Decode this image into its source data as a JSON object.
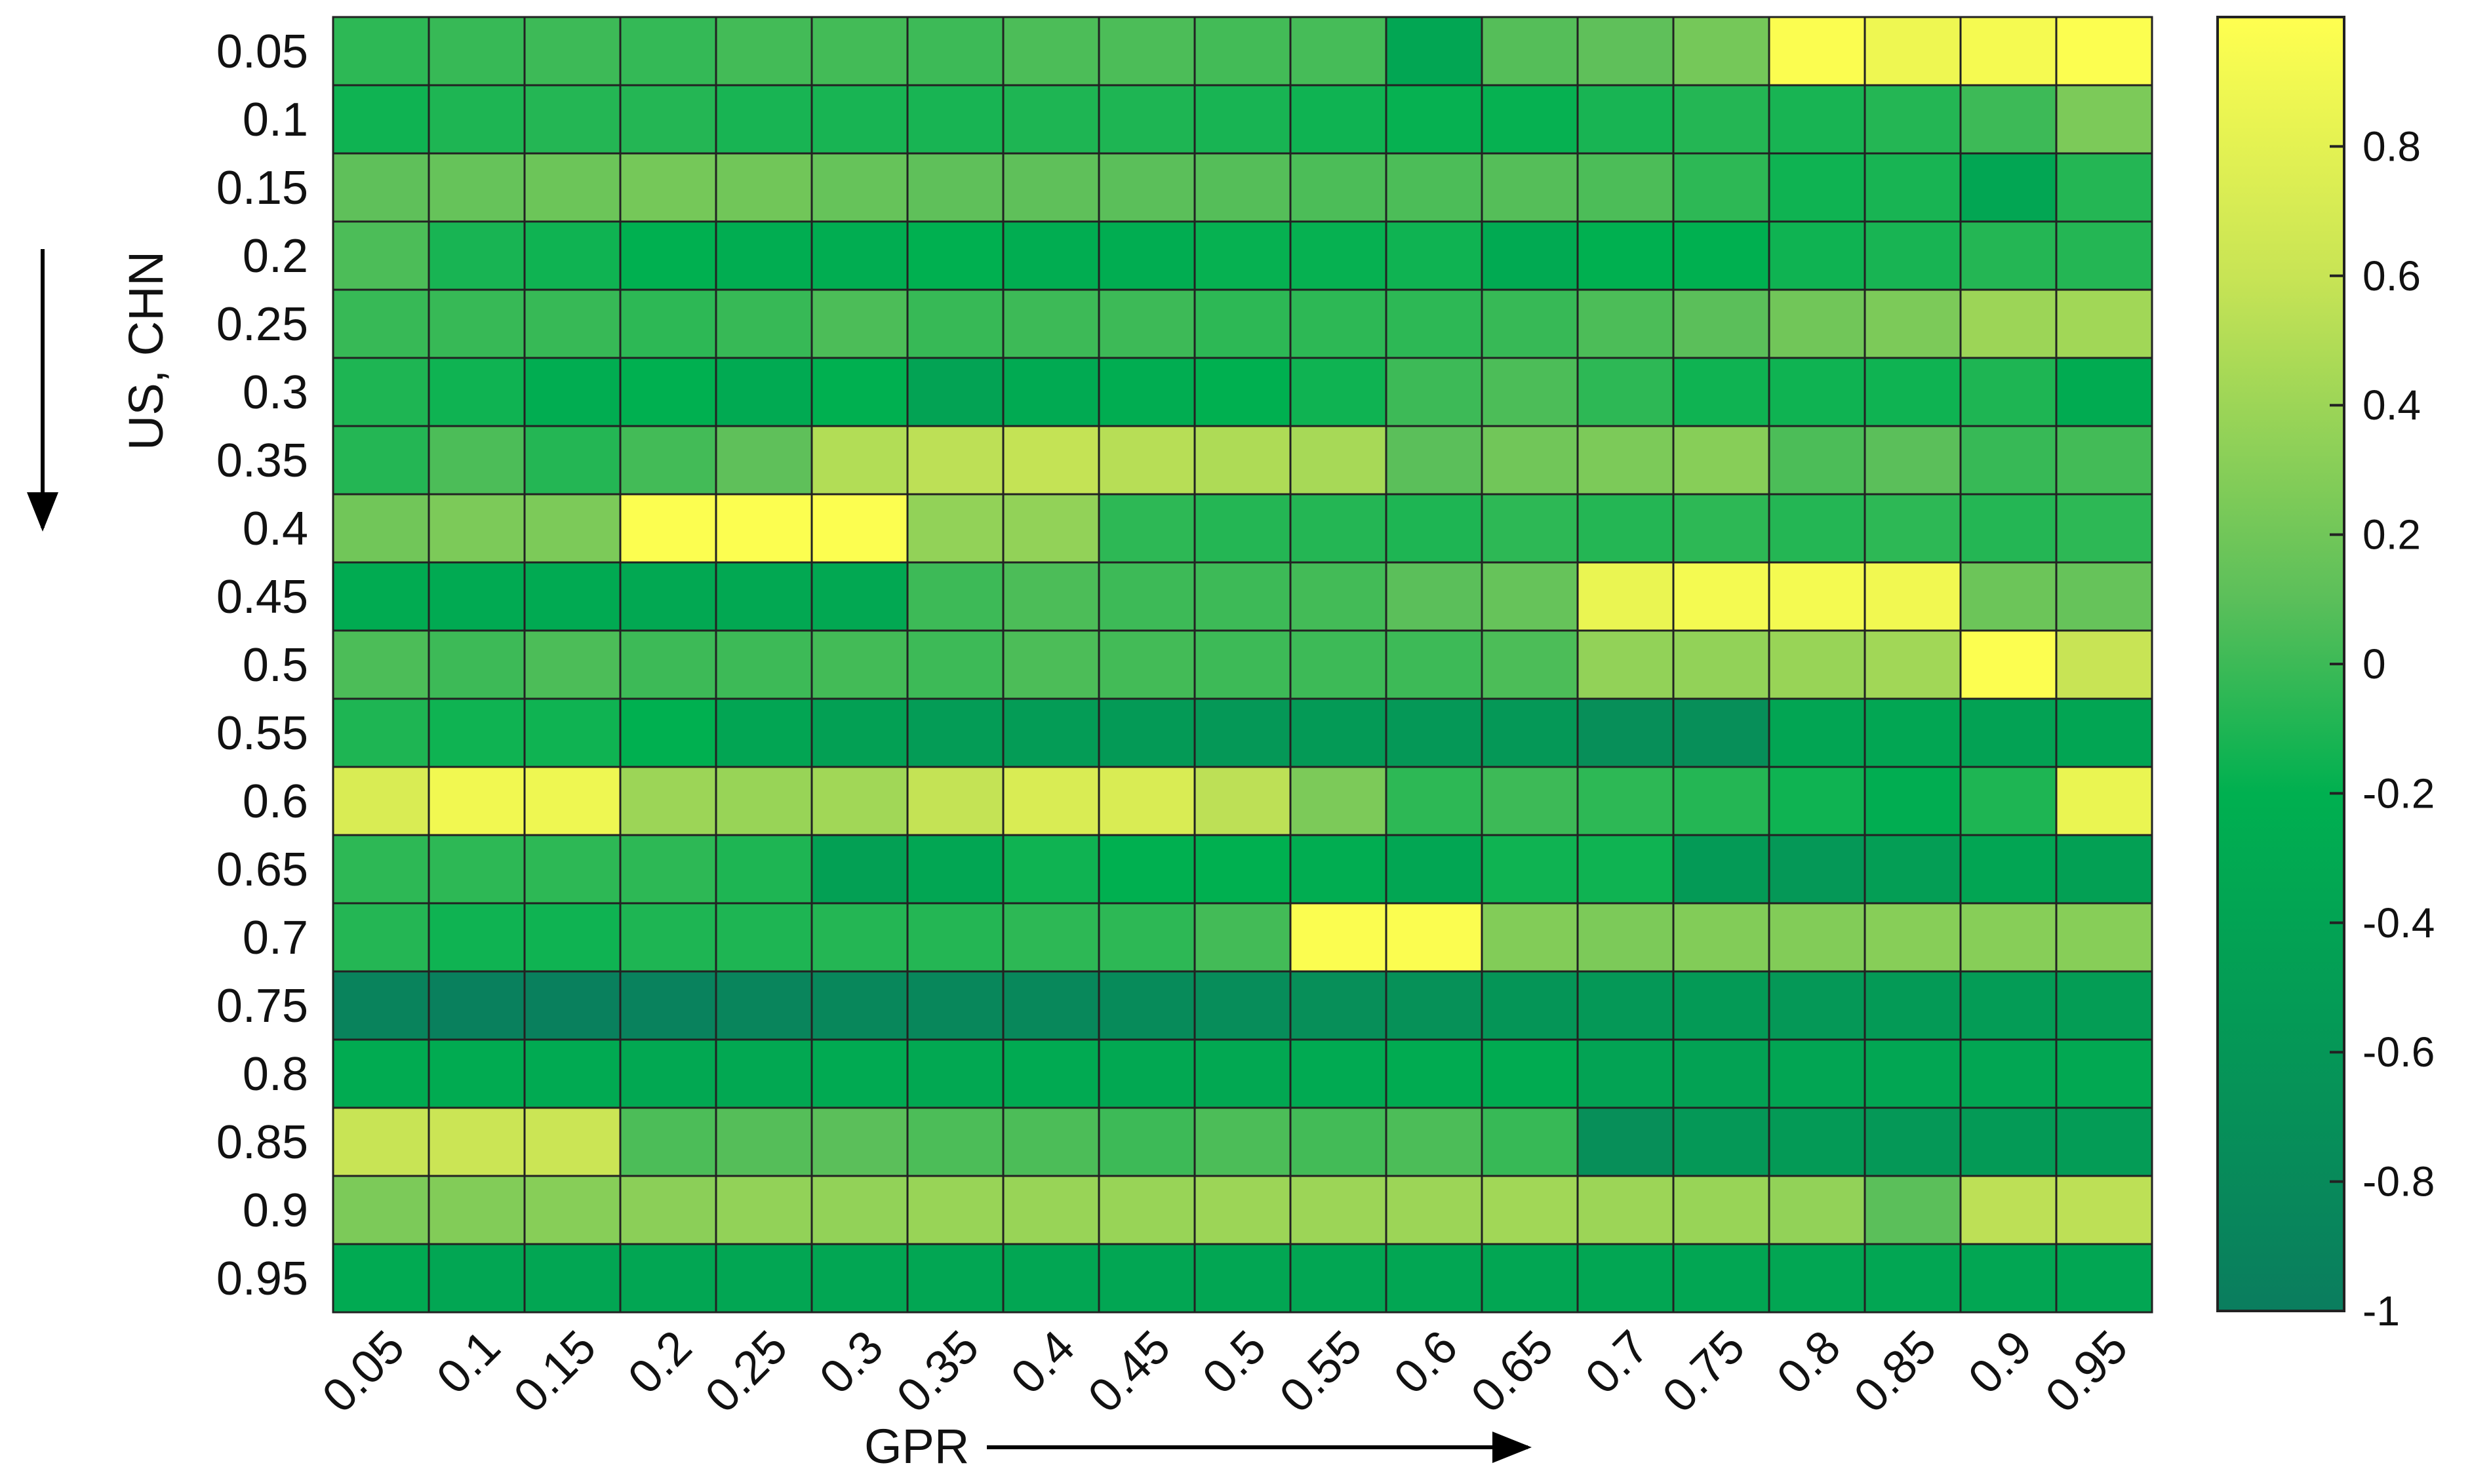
{
  "chart_data": {
    "type": "heatmap",
    "title": "",
    "xlabel": "GPR",
    "ylabel": "US, CHN",
    "x_categories": [
      "0.05",
      "0.1",
      "0.15",
      "0.2",
      "0.25",
      "0.3",
      "0.35",
      "0.4",
      "0.45",
      "0.5",
      "0.55",
      "0.6",
      "0.65",
      "0.7",
      "0.75",
      "0.8",
      "0.85",
      "0.9",
      "0.95"
    ],
    "y_categories": [
      "0.05",
      "0.1",
      "0.15",
      "0.2",
      "0.25",
      "0.3",
      "0.35",
      "0.4",
      "0.45",
      "0.5",
      "0.55",
      "0.6",
      "0.65",
      "0.7",
      "0.75",
      "0.8",
      "0.85",
      "0.9",
      "0.95"
    ],
    "values": [
      [
        -0.05,
        -0.02,
        0.0,
        -0.03,
        0.02,
        0.02,
        0.0,
        0.05,
        0.05,
        0.02,
        0.03,
        -0.35,
        0.08,
        0.12,
        0.22,
        0.97,
        0.88,
        0.93,
        0.98
      ],
      [
        -0.15,
        -0.1,
        -0.08,
        -0.08,
        -0.12,
        -0.12,
        -0.12,
        -0.1,
        -0.1,
        -0.12,
        -0.15,
        -0.18,
        -0.18,
        -0.12,
        -0.08,
        -0.12,
        -0.08,
        0.0,
        0.25
      ],
      [
        0.12,
        0.15,
        0.18,
        0.22,
        0.2,
        0.15,
        0.12,
        0.12,
        0.1,
        0.08,
        0.05,
        0.05,
        0.08,
        0.05,
        -0.05,
        -0.15,
        -0.12,
        -0.35,
        -0.08
      ],
      [
        0.05,
        -0.12,
        -0.15,
        -0.2,
        -0.25,
        -0.25,
        -0.2,
        -0.25,
        -0.25,
        -0.18,
        -0.18,
        -0.15,
        -0.3,
        -0.2,
        -0.2,
        -0.15,
        -0.12,
        -0.08,
        -0.08
      ],
      [
        -0.02,
        -0.02,
        -0.02,
        -0.05,
        -0.02,
        0.05,
        -0.02,
        0.0,
        0.0,
        -0.05,
        -0.05,
        -0.05,
        -0.02,
        0.05,
        0.1,
        0.2,
        0.25,
        0.4,
        0.42
      ],
      [
        -0.1,
        -0.15,
        -0.25,
        -0.2,
        -0.3,
        -0.2,
        -0.4,
        -0.3,
        -0.25,
        -0.2,
        -0.15,
        0.0,
        0.05,
        -0.05,
        -0.15,
        -0.15,
        -0.15,
        -0.1,
        -0.28
      ],
      [
        -0.08,
        0.05,
        -0.08,
        0.02,
        0.12,
        0.5,
        0.55,
        0.58,
        0.52,
        0.48,
        0.45,
        0.1,
        0.2,
        0.25,
        0.3,
        0.05,
        0.1,
        -0.02,
        0.02
      ],
      [
        0.2,
        0.25,
        0.25,
        0.98,
        0.98,
        0.98,
        0.35,
        0.35,
        -0.05,
        -0.08,
        -0.08,
        -0.1,
        -0.05,
        -0.08,
        -0.05,
        -0.08,
        -0.05,
        -0.08,
        -0.05
      ],
      [
        -0.28,
        -0.3,
        -0.3,
        -0.32,
        -0.32,
        -0.32,
        0.0,
        0.05,
        0.0,
        0.0,
        0.02,
        0.1,
        0.15,
        0.85,
        0.92,
        0.92,
        0.9,
        0.18,
        0.15
      ],
      [
        0.05,
        0.0,
        0.05,
        0.0,
        0.0,
        0.02,
        0.0,
        0.05,
        0.02,
        0.0,
        0.0,
        0.0,
        0.05,
        0.35,
        0.35,
        0.38,
        0.42,
        0.98,
        0.6
      ],
      [
        -0.1,
        -0.15,
        -0.15,
        -0.2,
        -0.38,
        -0.45,
        -0.52,
        -0.52,
        -0.55,
        -0.58,
        -0.55,
        -0.58,
        -0.58,
        -0.72,
        -0.72,
        -0.38,
        -0.35,
        -0.42,
        -0.38
      ],
      [
        0.72,
        0.9,
        0.88,
        0.4,
        0.38,
        0.42,
        0.58,
        0.72,
        0.72,
        0.55,
        0.25,
        -0.05,
        0.0,
        -0.05,
        -0.08,
        -0.15,
        -0.25,
        -0.1,
        0.85
      ],
      [
        -0.05,
        -0.05,
        -0.05,
        -0.05,
        -0.1,
        -0.45,
        -0.35,
        -0.15,
        -0.2,
        -0.2,
        -0.25,
        -0.35,
        -0.15,
        -0.15,
        -0.55,
        -0.58,
        -0.48,
        -0.38,
        -0.45
      ],
      [
        -0.08,
        -0.15,
        -0.15,
        -0.1,
        -0.1,
        -0.08,
        -0.08,
        -0.05,
        -0.05,
        0.02,
        0.97,
        0.97,
        0.28,
        0.25,
        0.28,
        0.28,
        0.3,
        0.3,
        0.3
      ],
      [
        -0.9,
        -0.95,
        -0.95,
        -0.92,
        -0.88,
        -0.85,
        -0.85,
        -0.82,
        -0.78,
        -0.75,
        -0.72,
        -0.68,
        -0.62,
        -0.58,
        -0.55,
        -0.58,
        -0.55,
        -0.52,
        -0.5
      ],
      [
        -0.28,
        -0.28,
        -0.3,
        -0.32,
        -0.32,
        -0.3,
        -0.32,
        -0.3,
        -0.32,
        -0.32,
        -0.3,
        -0.28,
        -0.28,
        -0.4,
        -0.42,
        -0.38,
        -0.35,
        -0.35,
        -0.32
      ],
      [
        0.6,
        0.62,
        0.62,
        0.05,
        0.08,
        0.1,
        0.05,
        0.05,
        0.0,
        0.05,
        0.02,
        0.05,
        -0.02,
        -0.72,
        -0.58,
        -0.55,
        -0.58,
        -0.55,
        -0.52
      ],
      [
        0.25,
        0.28,
        0.3,
        0.32,
        0.35,
        0.35,
        0.38,
        0.38,
        0.38,
        0.4,
        0.4,
        0.4,
        0.42,
        0.4,
        0.38,
        0.35,
        0.1,
        0.55,
        0.55
      ],
      [
        -0.3,
        -0.35,
        -0.35,
        -0.35,
        -0.35,
        -0.35,
        -0.35,
        -0.35,
        -0.35,
        -0.35,
        -0.35,
        -0.35,
        -0.35,
        -0.35,
        -0.35,
        -0.35,
        -0.35,
        -0.35,
        -0.35
      ]
    ],
    "colorbar": {
      "range": [
        -1,
        1
      ],
      "ticks": [
        "0.8",
        "0.6",
        "0.4",
        "0.2",
        "0",
        "-0.2",
        "-0.4",
        "-0.6",
        "-0.8",
        "-1"
      ],
      "tick_values": [
        0.8,
        0.6,
        0.4,
        0.2,
        0,
        -0.2,
        -0.4,
        -0.6,
        -0.8,
        -1
      ],
      "colormap": [
        "#0a7d5e",
        "#00b050",
        "#5bbf5a",
        "#c8e455",
        "#ffff50"
      ]
    },
    "grid": true,
    "cell_border_color": "#222222"
  }
}
